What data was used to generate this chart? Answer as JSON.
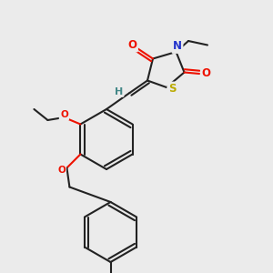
{
  "bg_color": "#ebebeb",
  "bond_color": "#222222",
  "atom_colors": {
    "O": "#ee1100",
    "N": "#2233cc",
    "S": "#bbaa00",
    "H": "#448888",
    "C": "#222222"
  },
  "figsize": [
    3.0,
    3.0
  ],
  "dpi": 100,
  "lw": 1.5,
  "fs": 8.5
}
